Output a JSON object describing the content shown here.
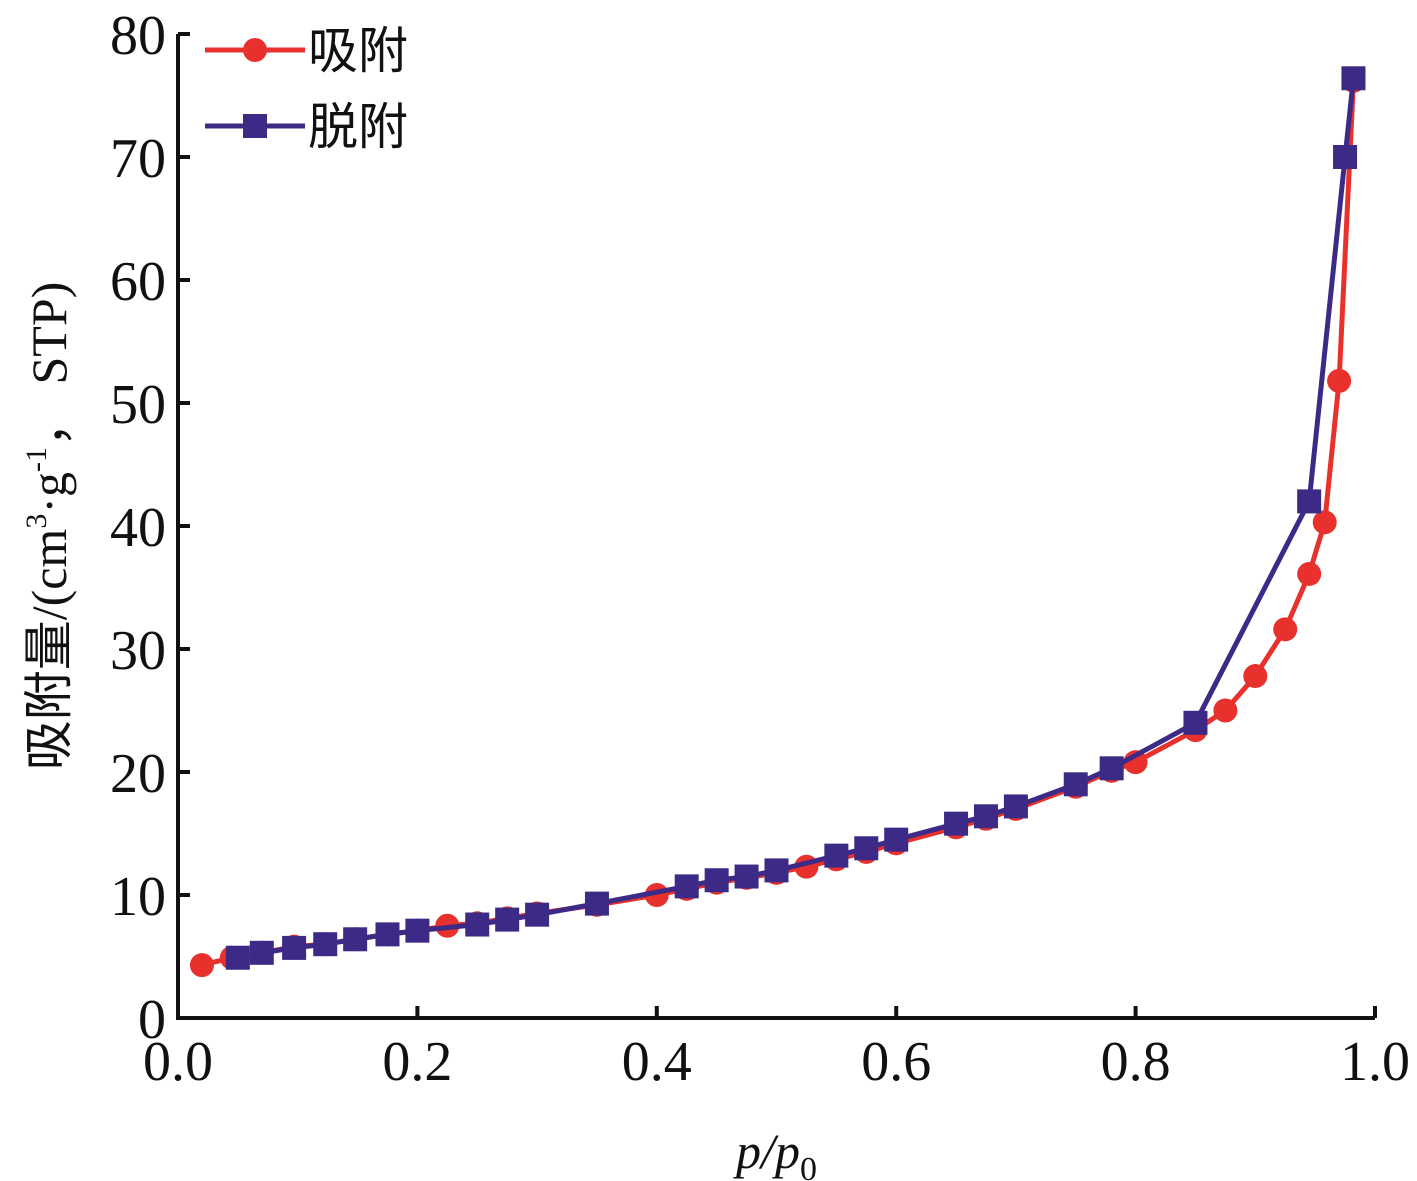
{
  "chart_data": {
    "type": "line",
    "title": "",
    "xlabel": {
      "base": "p/p",
      "sub": "0"
    },
    "ylabel": {
      "prefix": "吸附量/(cm",
      "sup1": "3",
      "mid": "·g",
      "sup2": "-1",
      "suffix": "， STP)"
    },
    "xlim": [
      0.0,
      1.0
    ],
    "ylim": [
      0,
      80
    ],
    "xticks": [
      "0.0",
      "0.2",
      "0.4",
      "0.6",
      "0.8",
      "1.0"
    ],
    "yticks": [
      "0",
      "10",
      "20",
      "30",
      "40",
      "50",
      "60",
      "70",
      "80"
    ],
    "grid": false,
    "legend_position": "top-left",
    "series": [
      {
        "name": "吸附",
        "color": "#e8302c",
        "marker": "circle",
        "x": [
          0.02,
          0.045,
          0.07,
          0.097,
          0.123,
          0.148,
          0.175,
          0.2,
          0.225,
          0.25,
          0.275,
          0.3,
          0.35,
          0.4,
          0.425,
          0.45,
          0.475,
          0.5,
          0.525,
          0.55,
          0.575,
          0.6,
          0.65,
          0.675,
          0.7,
          0.75,
          0.78,
          0.8,
          0.85,
          0.875,
          0.9,
          0.925,
          0.945,
          0.958,
          0.97,
          0.982
        ],
        "y": [
          4.3,
          4.9,
          5.3,
          5.8,
          6.0,
          6.4,
          6.8,
          7.1,
          7.5,
          7.7,
          8.1,
          8.5,
          9.2,
          10.0,
          10.5,
          11.0,
          11.4,
          11.8,
          12.3,
          12.9,
          13.5,
          14.2,
          15.5,
          16.2,
          17.0,
          18.8,
          20.1,
          20.8,
          23.4,
          25.0,
          27.8,
          31.6,
          36.1,
          40.3,
          51.8,
          76.2
        ]
      },
      {
        "name": "脱附",
        "color": "#3c2a86",
        "marker": "square",
        "x": [
          0.982,
          0.975,
          0.945,
          0.85,
          0.78,
          0.75,
          0.7,
          0.675,
          0.65,
          0.6,
          0.575,
          0.55,
          0.5,
          0.475,
          0.45,
          0.425,
          0.35,
          0.3,
          0.275,
          0.25,
          0.2,
          0.175,
          0.148,
          0.123,
          0.097,
          0.07,
          0.05
        ],
        "y": [
          76.4,
          70.0,
          42.0,
          24.0,
          20.3,
          19.0,
          17.2,
          16.4,
          15.8,
          14.5,
          13.8,
          13.2,
          12.0,
          11.5,
          11.2,
          10.7,
          9.3,
          8.4,
          8.0,
          7.6,
          7.1,
          6.8,
          6.4,
          6.0,
          5.7,
          5.3,
          4.9
        ]
      }
    ]
  }
}
